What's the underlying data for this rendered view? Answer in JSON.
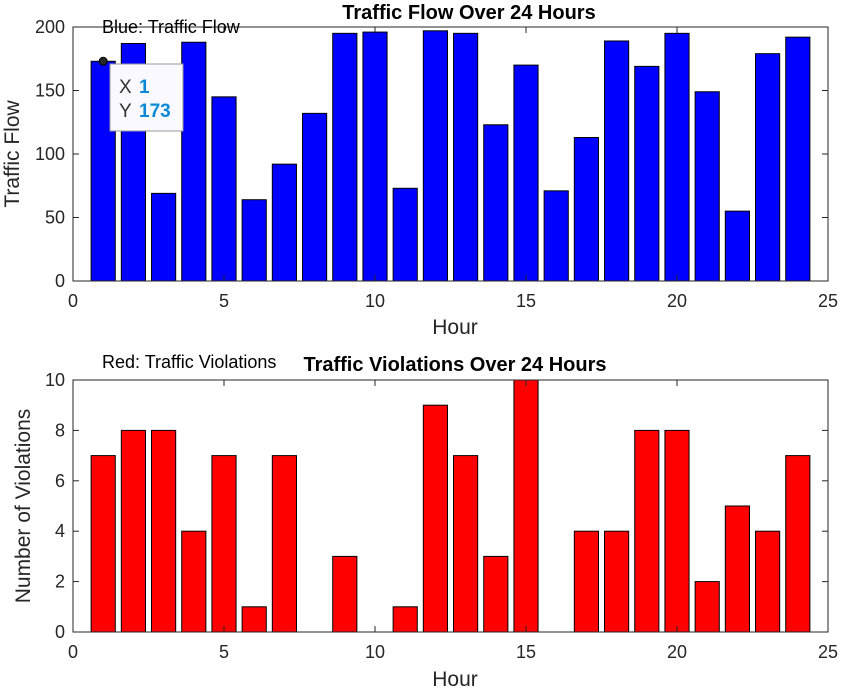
{
  "chart_data": [
    {
      "type": "bar",
      "title": "Traffic Flow Over 24 Hours",
      "xlabel": "Hour",
      "ylabel": "Traffic Flow",
      "annotation": "Blue: Traffic Flow",
      "color": "#0000ff",
      "xlim": [
        0,
        25
      ],
      "ylim": [
        0,
        200
      ],
      "xticks": [
        0,
        5,
        10,
        15,
        20,
        25
      ],
      "yticks": [
        0,
        50,
        100,
        150,
        200
      ],
      "x": [
        1,
        2,
        3,
        4,
        5,
        6,
        7,
        8,
        9,
        10,
        11,
        12,
        13,
        14,
        15,
        16,
        17,
        18,
        19,
        20,
        21,
        22,
        23,
        24
      ],
      "values": [
        173,
        187,
        69,
        188,
        145,
        64,
        92,
        132,
        195,
        196,
        73,
        197,
        195,
        123,
        170,
        71,
        113,
        189,
        169,
        195,
        149,
        55,
        179,
        192
      ],
      "datatip": {
        "x_label": "X",
        "x_value": "1",
        "y_label": "Y",
        "y_value": "173",
        "x": 1,
        "y": 173
      }
    },
    {
      "type": "bar",
      "title": "Traffic Violations Over 24 Hours",
      "xlabel": "Hour",
      "ylabel": "Number of Violations",
      "annotation": "Red: Traffic Violations",
      "color": "#ff0000",
      "xlim": [
        0,
        25
      ],
      "ylim": [
        0,
        10
      ],
      "xticks": [
        0,
        5,
        10,
        15,
        20,
        25
      ],
      "yticks": [
        0,
        2,
        4,
        6,
        8,
        10
      ],
      "x": [
        1,
        2,
        3,
        4,
        5,
        6,
        7,
        8,
        9,
        10,
        11,
        12,
        13,
        14,
        15,
        16,
        17,
        18,
        19,
        20,
        21,
        22,
        23,
        24
      ],
      "values": [
        7,
        8,
        8,
        4,
        7,
        1,
        7,
        0,
        3,
        0,
        1,
        9,
        7,
        3,
        10,
        0,
        4,
        4,
        8,
        8,
        2,
        5,
        4,
        7
      ]
    }
  ]
}
